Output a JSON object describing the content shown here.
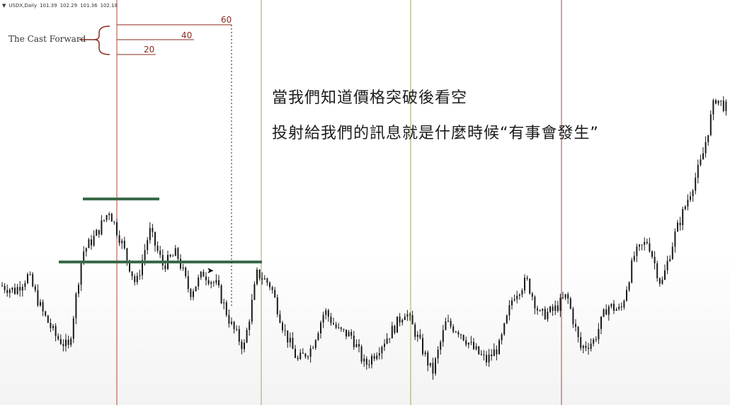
{
  "chart_header": {
    "symbol": "USDX,Daily",
    "open": "101.39",
    "high": "102.29",
    "low": "101.36",
    "close": "102.18",
    "menu_icon": "dropdown-triangle-icon"
  },
  "annotation": {
    "label": "The Cast Forward",
    "levels": [
      "60",
      "40",
      "20"
    ],
    "color": "#8a2a1e"
  },
  "headline": {
    "line1": "當我們知道價格突破後看空",
    "line2": "投射給我們的訊息就是什麼時候“有事會發生”"
  },
  "colors": {
    "candle": "#1a1a1a",
    "support_line": "#3a6b4a",
    "divider_red": "#b04434",
    "divider_olive": "#a3a35a"
  },
  "chart_data": {
    "type": "candlestick",
    "instrument": "USDX",
    "timeframe": "Daily",
    "last_bar": {
      "open": 101.39,
      "high": 102.29,
      "low": 101.36,
      "close": 102.18
    },
    "price_path_relative": [
      0.7,
      0.68,
      0.74,
      0.6,
      0.5,
      0.45,
      0.83,
      0.9,
      1.0,
      0.86,
      0.7,
      0.92,
      0.78,
      0.83,
      0.67,
      0.75,
      0.7,
      0.55,
      0.45,
      0.75,
      0.7,
      0.52,
      0.4,
      0.45,
      0.6,
      0.52,
      0.5,
      0.38,
      0.45,
      0.52,
      0.6,
      0.48,
      0.35,
      0.55,
      0.52,
      0.45,
      0.4,
      0.46,
      0.66,
      0.72,
      0.58,
      0.6,
      0.66,
      0.45,
      0.48,
      0.62,
      0.6,
      0.82,
      0.88,
      0.7,
      0.9,
      1.05,
      1.2,
      1.45,
      1.4
    ]
  }
}
